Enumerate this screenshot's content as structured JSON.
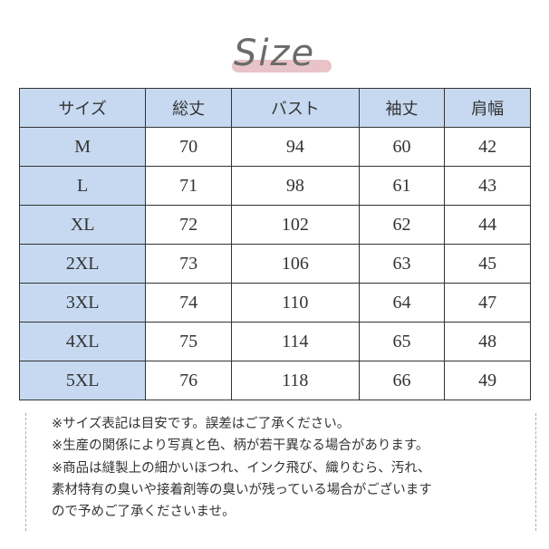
{
  "title": "Size",
  "colors": {
    "header_bg": "#c6d9f0",
    "title_underline": "#e8c4c8"
  },
  "table": {
    "headers": [
      "サイズ",
      "総丈",
      "バスト",
      "袖丈",
      "肩幅"
    ],
    "rows": [
      [
        "M",
        "70",
        "94",
        "60",
        "42"
      ],
      [
        "L",
        "71",
        "98",
        "61",
        "43"
      ],
      [
        "XL",
        "72",
        "102",
        "62",
        "44"
      ],
      [
        "2XL",
        "73",
        "106",
        "63",
        "45"
      ],
      [
        "3XL",
        "74",
        "110",
        "64",
        "47"
      ],
      [
        "4XL",
        "75",
        "114",
        "65",
        "48"
      ],
      [
        "5XL",
        "76",
        "118",
        "66",
        "49"
      ]
    ]
  },
  "notes": [
    "※サイズ表記は目安です。誤差はご了承ください。",
    "※生産の関係により写真と色、柄が若干異なる場合があります。",
    "※商品は縫製上の細かいほつれ、インク飛び、織りむら、汚れ、",
    "素材特有の臭いや接着剤等の臭いが残っている場合がございます",
    "ので予めご了承くださいませ。"
  ]
}
